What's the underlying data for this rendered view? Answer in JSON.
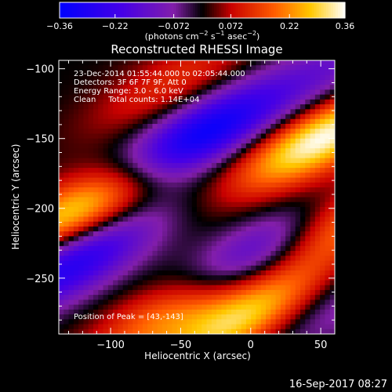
{
  "chart_data": {
    "type": "heatmap",
    "title": "Reconstructed RHESSI Image",
    "xlabel": "Heliocentric X (arcsec)",
    "ylabel": "Heliocentric Y (arcsec)",
    "xlim": [
      -137,
      60
    ],
    "ylim": [
      -290,
      -94
    ],
    "x_ticks": [
      -100,
      -50,
      0,
      50
    ],
    "y_ticks": [
      -100,
      -150,
      -200,
      -250
    ],
    "x_tick_labels": [
      "−100",
      "−50",
      "0",
      "50"
    ],
    "y_tick_labels": [
      "−100",
      "−150",
      "−200",
      "−250"
    ],
    "colorbar": {
      "range": [
        -0.36,
        0.36
      ],
      "tick_values": [
        -0.36,
        -0.22,
        -0.072,
        0.072,
        0.22,
        0.36
      ],
      "tick_labels": [
        "−0.36",
        "−0.22",
        "−0.072",
        "0.072",
        "0.22",
        "0.36"
      ],
      "label_main": "(photons cm",
      "label_sup1": "−2",
      "label_mid": " s",
      "label_sup2": "−1",
      "label_mid2": " asec",
      "label_sup3": "−2",
      "label_end": ")"
    },
    "annotations": [
      "23-Dec-2014 01:55:44.000 to 02:05:44.000",
      "Detectors: 3F 6F 7F 9F, Att 0",
      "Energy Range: 3.0 - 6.0 keV",
      "Clean     Total counts: 1.14E+04"
    ],
    "peak_label": "Position of Peak = [43,-143]",
    "peak": [
      43,
      -143
    ],
    "bright_sources": [
      {
        "x": 50,
        "y": -150,
        "amp": 0.36
      },
      {
        "x": -120,
        "y": -200,
        "amp": 0.34
      },
      {
        "x": 55,
        "y": -215,
        "amp": 0.3
      },
      {
        "x": -5,
        "y": -280,
        "amp": 0.3
      },
      {
        "x": -50,
        "y": -270,
        "amp": 0.26
      },
      {
        "x": -55,
        "y": -110,
        "amp": 0.12
      }
    ],
    "dark_sources": [
      {
        "x": -40,
        "y": -150,
        "amp": -0.36
      },
      {
        "x": 5,
        "y": -235,
        "amp": -0.36
      },
      {
        "x": -130,
        "y": -240,
        "amp": -0.3
      },
      {
        "x": 55,
        "y": -270,
        "amp": -0.12
      },
      {
        "x": 60,
        "y": -100,
        "amp": -0.12
      }
    ]
  },
  "footer": {
    "timestamp": "16-Sep-2017 08:27"
  }
}
